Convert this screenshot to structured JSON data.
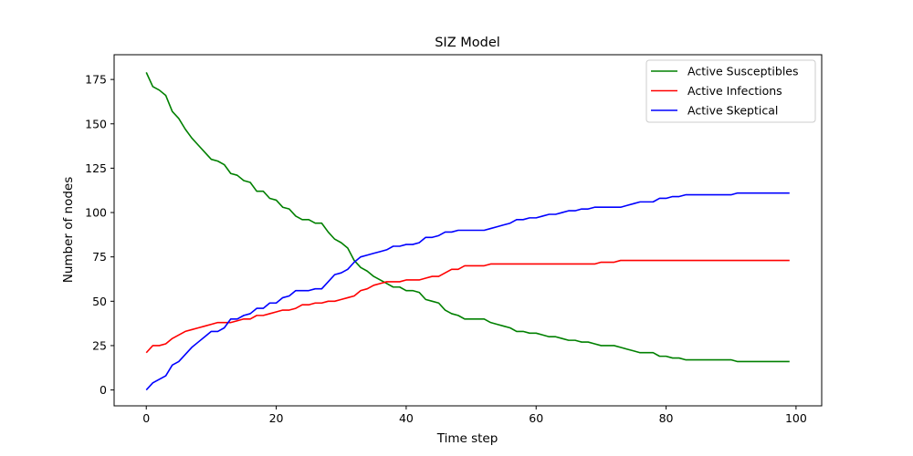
{
  "chart_data": {
    "type": "line",
    "title": "SIZ Model",
    "xlabel": "Time step",
    "ylabel": "Number of nodes",
    "xlim": [
      -4.95,
      103.95
    ],
    "ylim": [
      -8.95,
      188.95
    ],
    "xticks": [
      0,
      20,
      40,
      60,
      80,
      100
    ],
    "yticks": [
      0,
      25,
      50,
      75,
      100,
      125,
      150,
      175
    ],
    "grid": false,
    "legend_position": "top-right",
    "x_start": 0,
    "x_step": 1,
    "series": [
      {
        "name": "Active Susceptibles",
        "color": "#008000",
        "values": [
          179,
          171,
          169,
          166,
          157,
          153,
          147,
          142,
          138,
          134,
          130,
          129,
          127,
          122,
          121,
          118,
          117,
          112,
          112,
          108,
          107,
          103,
          102,
          98,
          96,
          96,
          94,
          94,
          89,
          85,
          83,
          80,
          73,
          69,
          67,
          64,
          62,
          60,
          58,
          58,
          56,
          56,
          55,
          51,
          50,
          49,
          45,
          43,
          42,
          40,
          40,
          40,
          40,
          38,
          37,
          36,
          35,
          33,
          33,
          32,
          32,
          31,
          30,
          30,
          29,
          28,
          28,
          27,
          27,
          26,
          25,
          25,
          25,
          24,
          23,
          22,
          21,
          21,
          21,
          19,
          19,
          18,
          18,
          17,
          17,
          17,
          17,
          17,
          17,
          17,
          17,
          16,
          16,
          16,
          16,
          16,
          16,
          16,
          16,
          16
        ]
      },
      {
        "name": "Active Infections",
        "color": "#ff0000",
        "values": [
          21,
          25,
          25,
          26,
          29,
          31,
          33,
          34,
          35,
          36,
          37,
          38,
          38,
          38,
          39,
          40,
          40,
          42,
          42,
          43,
          44,
          45,
          45,
          46,
          48,
          48,
          49,
          49,
          50,
          50,
          51,
          52,
          53,
          56,
          57,
          59,
          60,
          61,
          61,
          61,
          62,
          62,
          62,
          63,
          64,
          64,
          66,
          68,
          68,
          70,
          70,
          70,
          70,
          71,
          71,
          71,
          71,
          71,
          71,
          71,
          71,
          71,
          71,
          71,
          71,
          71,
          71,
          71,
          71,
          71,
          72,
          72,
          72,
          73,
          73,
          73,
          73,
          73,
          73,
          73,
          73,
          73,
          73,
          73,
          73,
          73,
          73,
          73,
          73,
          73,
          73,
          73,
          73,
          73,
          73,
          73,
          73,
          73,
          73,
          73
        ]
      },
      {
        "name": "Active Skeptical",
        "color": "#0000ff",
        "values": [
          0,
          4,
          6,
          8,
          14,
          16,
          20,
          24,
          27,
          30,
          33,
          33,
          35,
          40,
          40,
          42,
          43,
          46,
          46,
          49,
          49,
          52,
          53,
          56,
          56,
          56,
          57,
          57,
          61,
          65,
          66,
          68,
          72,
          75,
          76,
          77,
          78,
          79,
          81,
          81,
          82,
          82,
          83,
          86,
          86,
          87,
          89,
          89,
          90,
          90,
          90,
          90,
          90,
          91,
          92,
          93,
          94,
          96,
          96,
          97,
          97,
          98,
          99,
          99,
          100,
          101,
          101,
          102,
          102,
          103,
          103,
          103,
          103,
          103,
          104,
          105,
          106,
          106,
          106,
          108,
          108,
          109,
          109,
          110,
          110,
          110,
          110,
          110,
          110,
          110,
          110,
          111,
          111,
          111,
          111,
          111,
          111,
          111,
          111,
          111
        ]
      }
    ]
  }
}
